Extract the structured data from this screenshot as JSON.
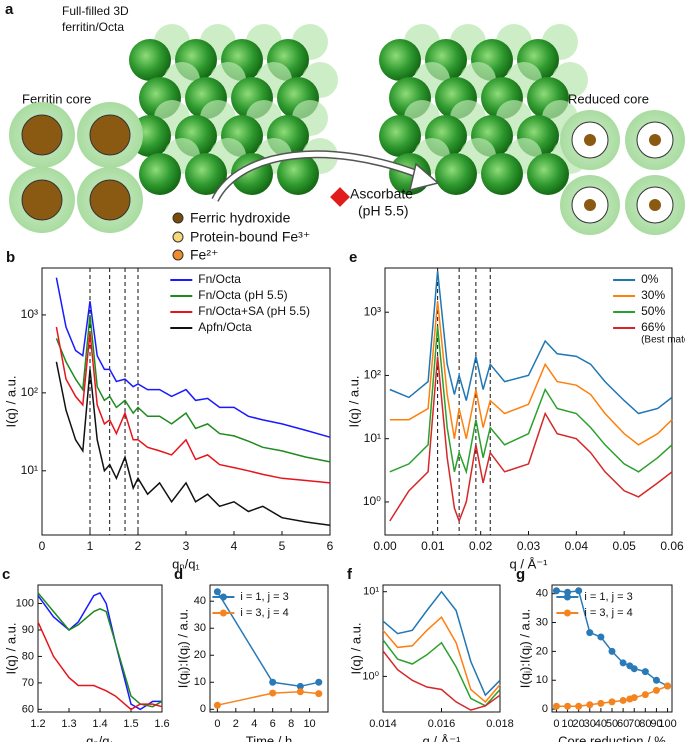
{
  "diagram": {
    "label": "a",
    "lattice_title": [
      "Full-filled 3D",
      "ferritin/Octa"
    ],
    "left_core": "Ferritin core",
    "right_core": "Reduced core",
    "legend": [
      "Ferric hydroxide",
      "Protein-bound Fe³⁺",
      "Fe²⁺"
    ],
    "reagent": [
      "Ascorbate",
      "(pH 5.5)"
    ]
  },
  "chart_data": [
    {
      "type": "line",
      "label": "b",
      "xlabel": "qₙ/q₁",
      "ylabel": "I(q) / a.u.",
      "log_y": true,
      "legend": "upper right",
      "x": [
        0.3,
        0.5,
        0.7,
        0.85,
        1.0,
        1.15,
        1.3,
        1.41,
        1.55,
        1.73,
        1.9,
        2.0,
        2.2,
        2.45,
        2.7,
        3.0,
        3.2,
        3.45,
        3.7,
        4.0,
        4.3,
        4.6,
        5.0,
        5.5,
        6.0
      ],
      "series": [
        {
          "name": "Fn/Octa",
          "color": "#1a1aff",
          "values": [
            3000,
            700,
            350,
            300,
            1500,
            300,
            200,
            200,
            140,
            150,
            120,
            130,
            110,
            110,
            90,
            110,
            80,
            85,
            65,
            65,
            50,
            45,
            40,
            33,
            27
          ]
        },
        {
          "name": "Fn/Octa (pH 5.5)",
          "color": "#1f8a1f",
          "values": [
            500,
            250,
            150,
            110,
            1000,
            120,
            80,
            90,
            65,
            80,
            55,
            65,
            50,
            50,
            40,
            55,
            35,
            40,
            30,
            28,
            24,
            20,
            18,
            15,
            13
          ]
        },
        {
          "name": "Fn/Octa+SA (pH 5.5)",
          "color": "#e8141c",
          "values": [
            700,
            150,
            90,
            70,
            600,
            70,
            40,
            45,
            30,
            55,
            25,
            25,
            20,
            18,
            16,
            25,
            14,
            16,
            12,
            11,
            10,
            9,
            8,
            7.5,
            7
          ]
        },
        {
          "name": "Apfn/Octa",
          "color": "#111111",
          "values": [
            250,
            60,
            25,
            18,
            200,
            25,
            10,
            12,
            8,
            15,
            6,
            8,
            5,
            7,
            4,
            7,
            4,
            5,
            3.5,
            4,
            3,
            3.5,
            2.5,
            2.2,
            2
          ]
        }
      ],
      "vlines": [
        1,
        1.41,
        1.73,
        2
      ],
      "xlim": [
        0,
        6
      ],
      "ylim": [
        1.5,
        4000
      ],
      "xticks": [
        0,
        1,
        2,
        3,
        4,
        5,
        6
      ],
      "yticks": [
        {
          "value": 10,
          "label": "10¹"
        },
        {
          "value": 100,
          "label": "10²"
        },
        {
          "value": 1000,
          "label": "10³"
        }
      ]
    },
    {
      "type": "line",
      "label": "e",
      "xlabel": "q / Å⁻¹",
      "ylabel": "I(q) / a.u.",
      "log_y": true,
      "legend": "upper right",
      "legend_note": "(Best match)",
      "x": [
        0.001,
        0.005,
        0.009,
        0.011,
        0.013,
        0.0145,
        0.0155,
        0.017,
        0.019,
        0.0205,
        0.022,
        0.025,
        0.03,
        0.0335,
        0.036,
        0.04,
        0.043,
        0.046,
        0.05,
        0.053,
        0.057,
        0.06
      ],
      "series": [
        {
          "name": "0%",
          "color": "#1f77b4",
          "values": [
            60,
            45,
            80,
            4500,
            150,
            50,
            100,
            40,
            200,
            60,
            150,
            80,
            100,
            350,
            220,
            200,
            150,
            80,
            40,
            25,
            30,
            45
          ]
        },
        {
          "name": "30%",
          "color": "#ff7f0e",
          "values": [
            20,
            20,
            30,
            1500,
            50,
            10,
            30,
            10,
            60,
            15,
            40,
            25,
            35,
            150,
            80,
            70,
            50,
            25,
            12,
            8,
            12,
            20
          ]
        },
        {
          "name": "50%",
          "color": "#2ca02c",
          "values": [
            3,
            4,
            8,
            600,
            15,
            3,
            6,
            3,
            20,
            5,
            15,
            8,
            12,
            60,
            30,
            25,
            15,
            8,
            4,
            3,
            5,
            8
          ]
        },
        {
          "name": "66%",
          "color": "#d62728",
          "values": [
            0.5,
            1.5,
            3,
            200,
            5,
            0.8,
            0.5,
            1,
            8,
            2,
            6,
            3,
            4,
            25,
            12,
            10,
            6,
            3,
            1.5,
            1.2,
            2,
            3
          ]
        }
      ],
      "vlines": [
        0.011,
        0.0155,
        0.019,
        0.022
      ],
      "xlim": [
        0,
        0.06
      ],
      "ylim": [
        0.3,
        5000
      ],
      "xticks": [
        {
          "value": 0,
          "label": "0.00"
        },
        0.01,
        0.02,
        0.03,
        0.04,
        0.05,
        0.06
      ],
      "yticks": [
        {
          "value": 1,
          "label": "10⁰"
        },
        {
          "value": 10,
          "label": "10¹"
        },
        {
          "value": 100,
          "label": "10²"
        },
        {
          "value": 1000,
          "label": "10³"
        }
      ]
    },
    {
      "type": "line",
      "label": "c",
      "xlabel": "qₙ/q₁",
      "ylabel": "I(q) / a.u.",
      "x": [
        1.2,
        1.25,
        1.3,
        1.33,
        1.38,
        1.4,
        1.42,
        1.45,
        1.5,
        1.53,
        1.57,
        1.6
      ],
      "series": [
        {
          "color": "#1a1aff",
          "values": [
            103,
            95,
            90,
            93,
            103,
            104,
            100,
            85,
            62,
            60,
            63,
            63
          ]
        },
        {
          "color": "#1f8a1f",
          "values": [
            104,
            97,
            90,
            92,
            97,
            98,
            97,
            85,
            65,
            62,
            61,
            63
          ]
        },
        {
          "color": "#e8141c",
          "values": [
            93,
            80,
            72,
            69,
            69,
            68,
            67,
            65,
            60,
            62,
            62,
            61
          ]
        }
      ],
      "xlim": [
        1.2,
        1.6
      ],
      "ylim": [
        59,
        107
      ],
      "xticks": [
        1.2,
        1.3,
        1.4,
        1.5,
        1.6
      ],
      "yticks": [
        60,
        70,
        80,
        90,
        100
      ]
    },
    {
      "type": "line",
      "label": "d",
      "xlabel": "Time / h",
      "ylabel": "I(qᵢ):I(qⱼ) / a.u.",
      "markers": true,
      "legend": "upper right",
      "x": [
        0,
        6,
        9,
        11
      ],
      "series": [
        {
          "name": "i = 1, j = 3",
          "color": "#2a7ab8",
          "values": [
            43.5,
            10,
            8.5,
            10
          ]
        },
        {
          "name": "i = 3, j = 4",
          "color": "#f5841f",
          "values": [
            1.5,
            6,
            6.5,
            5.8
          ]
        }
      ],
      "xlim": [
        -0.8,
        12
      ],
      "ylim": [
        -1,
        46
      ],
      "xticks": [
        0,
        2,
        4,
        6,
        8,
        10
      ],
      "yticks": [
        0,
        10,
        20,
        30,
        40
      ]
    },
    {
      "type": "line",
      "label": "f",
      "xlabel": "q / Å⁻¹",
      "ylabel": "I(q) / a.u.",
      "log_y": true,
      "x": [
        0.014,
        0.0145,
        0.015,
        0.0155,
        0.016,
        0.0165,
        0.017,
        0.0175,
        0.018
      ],
      "series": [
        {
          "color": "#1f77b4",
          "values": [
            4.5,
            3.2,
            3.5,
            6,
            10,
            6,
            1.5,
            0.6,
            0.9
          ]
        },
        {
          "color": "#ff7f0e",
          "values": [
            3.5,
            2.2,
            2.3,
            3.5,
            5,
            2.5,
            0.7,
            0.5,
            0.8
          ]
        },
        {
          "color": "#2ca02c",
          "values": [
            2.7,
            1.6,
            1.4,
            1.8,
            2.5,
            1.3,
            0.55,
            0.45,
            0.7
          ]
        },
        {
          "color": "#d62728",
          "values": [
            2,
            1.2,
            0.9,
            0.75,
            0.7,
            0.5,
            0.4,
            0.45,
            0.6
          ]
        }
      ],
      "xlim": [
        0.014,
        0.018
      ],
      "ylim": [
        0.38,
        12
      ],
      "xticks": [
        0.014,
        0.016,
        0.018
      ],
      "yticks": [
        {
          "value": 1,
          "label": "10⁰"
        },
        {
          "value": 10,
          "label": "10¹"
        }
      ]
    },
    {
      "type": "line",
      "label": "g",
      "xlabel": "Core reduction / %",
      "ylabel": "I(qᵢ):I(qⱼ) / a.u.",
      "markers": true,
      "legend": "upper right",
      "x": [
        0,
        10,
        20,
        30,
        40,
        50,
        60,
        66,
        70,
        80,
        90,
        100
      ],
      "series": [
        {
          "name": "i = 1, j = 3",
          "color": "#2a7ab8",
          "values": [
            41,
            40.5,
            41,
            26.5,
            25,
            20,
            16,
            15,
            14,
            13,
            10,
            8
          ]
        },
        {
          "name": "i = 3, j = 4",
          "color": "#f5841f",
          "values": [
            1,
            1,
            1,
            1.5,
            2,
            2.5,
            3,
            3.5,
            4,
            5,
            6.5,
            8
          ]
        }
      ],
      "xlim": [
        -4,
        104
      ],
      "ylim": [
        -1,
        43
      ],
      "xticks": [
        0,
        10,
        20,
        30,
        40,
        50,
        60,
        70,
        80,
        90,
        100
      ],
      "yticks": [
        0,
        10,
        20,
        30,
        40
      ]
    }
  ]
}
